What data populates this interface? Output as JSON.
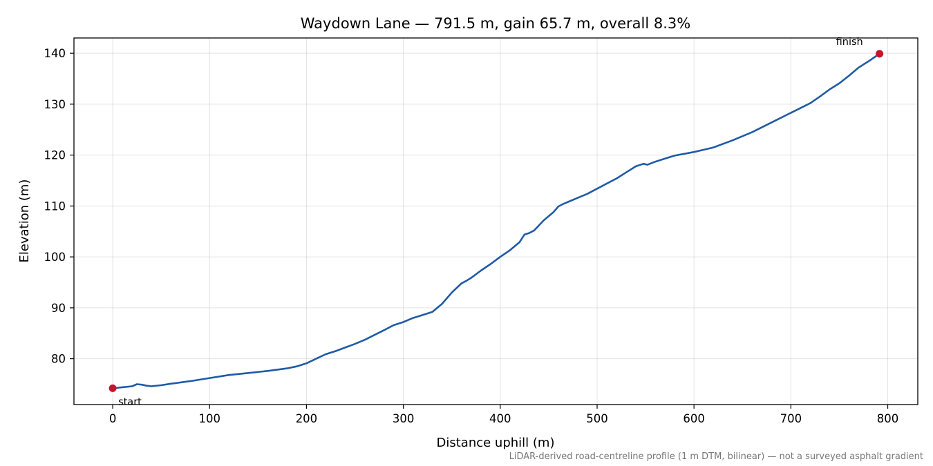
{
  "chart_data": {
    "type": "line",
    "title": "Waydown Lane — 791.5 m, gain 65.7 m, overall 8.3%",
    "xlabel": "Distance uphill (m)",
    "ylabel": "Elevation (m)",
    "xlim": [
      -40,
      831
    ],
    "ylim": [
      71,
      143
    ],
    "xticks": [
      0,
      100,
      200,
      300,
      400,
      500,
      600,
      700,
      800
    ],
    "yticks": [
      80,
      90,
      100,
      110,
      120,
      130,
      140
    ],
    "grid": true,
    "line_color": "#1f5aa6",
    "marker_color": "#c0182a",
    "series": [
      {
        "x": [
          0,
          10,
          20,
          25,
          30,
          35,
          40,
          50,
          60,
          80,
          100,
          120,
          140,
          160,
          180,
          190,
          200,
          210,
          220,
          230,
          240,
          250,
          260,
          280,
          290,
          300,
          310,
          320,
          330,
          340,
          350,
          360,
          365,
          370,
          380,
          390,
          400,
          410,
          420,
          425,
          430,
          435,
          440,
          445,
          450,
          455,
          460,
          465,
          470,
          480,
          490,
          500,
          510,
          520,
          530,
          540,
          548,
          552,
          560,
          570,
          580,
          600,
          620,
          640,
          660,
          680,
          700,
          720,
          730,
          740,
          750,
          760,
          770,
          780,
          791.5
        ],
        "y": [
          74.2,
          74.4,
          74.6,
          75.0,
          74.9,
          74.7,
          74.6,
          74.8,
          75.1,
          75.6,
          76.2,
          76.8,
          77.2,
          77.6,
          78.1,
          78.5,
          79.1,
          80.0,
          80.9,
          81.5,
          82.2,
          82.9,
          83.7,
          85.6,
          86.6,
          87.2,
          88.0,
          88.6,
          89.2,
          90.8,
          93.0,
          94.8,
          95.3,
          95.9,
          97.3,
          98.6,
          100.0,
          101.3,
          102.9,
          104.4,
          104.7,
          105.2,
          106.2,
          107.2,
          108.0,
          108.8,
          109.9,
          110.4,
          110.8,
          111.6,
          112.4,
          113.4,
          114.4,
          115.4,
          116.6,
          117.8,
          118.3,
          118.1,
          118.7,
          119.3,
          119.9,
          120.6,
          121.5,
          122.9,
          124.5,
          126.4,
          128.3,
          130.2,
          131.5,
          132.9,
          134.1,
          135.6,
          137.2,
          138.4,
          139.9
        ]
      }
    ],
    "start_label": "start",
    "finish_label": "finish",
    "footnote": "LiDAR-derived road-centreline profile (1 m DTM, bilinear) — not a surveyed asphalt gradient"
  }
}
